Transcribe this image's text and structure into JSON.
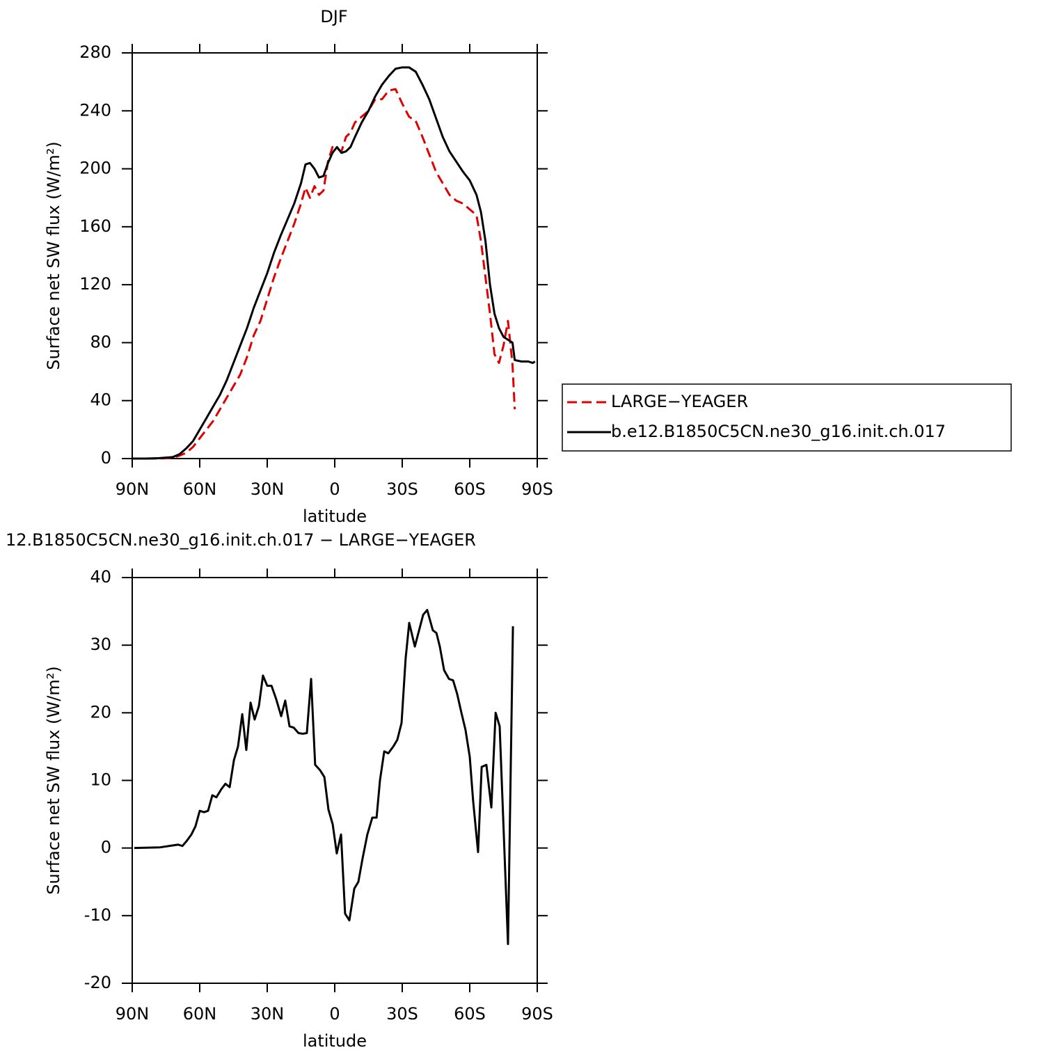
{
  "chart_data": [
    {
      "type": "line",
      "title": "DJF",
      "x_label": "latitude",
      "y_label": "Surface net SW flux (W/m²)",
      "x": [
        90,
        84,
        78,
        72,
        69,
        66,
        63,
        60,
        57,
        54,
        51,
        48,
        45,
        42,
        39,
        36,
        33,
        30,
        27,
        24,
        21,
        18,
        15,
        13,
        11,
        9,
        7,
        5,
        3,
        1,
        -1,
        -3,
        -5,
        -7,
        -9,
        -12,
        -15,
        -18,
        -21,
        -24,
        -27,
        -30,
        -33,
        -36,
        -39,
        -42,
        -45,
        -48,
        -51,
        -54,
        -57,
        -60,
        -63,
        -65,
        -67,
        -69,
        -71,
        -73,
        -75,
        -77,
        -79,
        -80,
        -83,
        -86,
        -88,
        -89
      ],
      "series": [
        {
          "name": "LARGE−YEAGER",
          "color": "#e00000",
          "style": "dashed",
          "values": [
            0,
            0,
            0,
            0.5,
            2,
            4,
            8,
            14,
            20,
            26,
            34,
            42,
            50,
            58,
            70,
            85,
            95,
            110,
            125,
            138,
            150,
            162,
            176,
            187,
            180,
            188,
            182,
            185,
            205,
            215,
            214,
            212,
            222,
            225,
            232,
            236,
            240,
            248,
            248,
            254,
            255,
            245,
            236,
            233,
            222,
            210,
            198,
            190,
            182,
            178,
            176,
            172,
            168,
            150,
            125,
            100,
            72,
            66,
            78,
            95,
            65,
            34,
            null,
            null,
            null,
            null
          ]
        },
        {
          "name": "b.e12.B1850C5CN.ne30_g16.init.ch.017",
          "color": "#000000",
          "style": "solid",
          "values": [
            0,
            0,
            0.3,
            1,
            3,
            7,
            12,
            20,
            28,
            36,
            44,
            54,
            66,
            78,
            90,
            104,
            116,
            128,
            142,
            154,
            165,
            176,
            190,
            203,
            204,
            200,
            194,
            195,
            204,
            211,
            215,
            211,
            212,
            215,
            222,
            232,
            240,
            250,
            258,
            264,
            269,
            270,
            270,
            267,
            258,
            248,
            235,
            222,
            212,
            205,
            198,
            192,
            182,
            170,
            150,
            120,
            100,
            90,
            84,
            82,
            80,
            68,
            67,
            67,
            66,
            67
          ]
        }
      ],
      "xlim": [
        90,
        -90
      ],
      "xticks": [
        {
          "value": 90,
          "label": "90N"
        },
        {
          "value": 60,
          "label": "60N"
        },
        {
          "value": 30,
          "label": "30N"
        },
        0,
        {
          "value": -30,
          "label": "30S"
        },
        {
          "value": -60,
          "label": "60S"
        },
        {
          "value": -90,
          "label": "90S"
        }
      ],
      "ylim": [
        0,
        280
      ],
      "yticks": [
        0,
        40,
        80,
        120,
        160,
        200,
        240,
        280
      ],
      "legend": "right"
    },
    {
      "type": "line",
      "title": "12.B1850C5CN.ne30_g16.init.ch.017 − LARGE−YEAGER",
      "x_label": "latitude",
      "y_label": "Surface net SW flux (W/m²)",
      "x": [
        89.1,
        77.6,
        69.6,
        67.7,
        65.9,
        63.7,
        61.9,
        60,
        58.1,
        56.3,
        54.4,
        52.6,
        50.4,
        48.6,
        46.7,
        44.8,
        43,
        41.1,
        39.3,
        37.4,
        35.6,
        33.7,
        31.9,
        30,
        28.1,
        26,
        23.8,
        22,
        20.1,
        18.2,
        16.1,
        14.2,
        12.4,
        10.5,
        8.7,
        6.5,
        4.6,
        2.8,
        0.9,
        -0.9,
        -2.8,
        -4.6,
        -6.5,
        -8.7,
        -10.5,
        -12.4,
        -14.5,
        -16.7,
        -18.6,
        -20.1,
        -22,
        -23.8,
        -26,
        -27.8,
        -29.7,
        -31.5,
        -33.1,
        -35.6,
        -39.3,
        -41.1,
        -43.6,
        -45.2,
        -46.7,
        -48.6,
        -50.8,
        -52.6,
        -54.4,
        -56.3,
        -58.1,
        -60,
        -61.5,
        -63.7,
        -65.3,
        -67.4,
        -69.6,
        -71.5,
        -73.3,
        -77,
        -79.2
      ],
      "values": [
        0,
        0.1,
        0.5,
        0.3,
        1,
        2,
        3.2,
        5.5,
        5.3,
        5.5,
        7.8,
        7.5,
        8.7,
        9.5,
        9,
        13,
        15,
        19.8,
        14.5,
        21.5,
        19,
        21,
        25.5,
        24,
        24,
        22,
        19.5,
        21.8,
        18,
        17.8,
        17,
        16.9,
        17,
        25,
        12.3,
        11.5,
        10.5,
        5.7,
        3.5,
        -0.8,
        2,
        -9.7,
        -10.7,
        -6,
        -5,
        -1.5,
        2,
        4.5,
        4.5,
        10,
        14.3,
        14,
        15,
        16,
        18.5,
        28,
        33.3,
        29.8,
        34.5,
        35.2,
        32.2,
        31.8,
        29.8,
        26.3,
        25,
        24.8,
        22.8,
        20,
        17.5,
        13.5,
        7,
        -0.6,
        12,
        12.3,
        6,
        20,
        18,
        -14.2,
        32.8
      ],
      "color": "#000000",
      "xlim": [
        90,
        -90
      ],
      "xticks": [
        {
          "value": 90,
          "label": "90N"
        },
        {
          "value": 60,
          "label": "60N"
        },
        {
          "value": 30,
          "label": "30N"
        },
        0,
        {
          "value": -30,
          "label": "30S"
        },
        {
          "value": -60,
          "label": "60S"
        },
        {
          "value": -90,
          "label": "90S"
        }
      ],
      "ylim": [
        -20,
        40
      ],
      "yticks": [
        -20,
        -10,
        0,
        10,
        20,
        30,
        40
      ]
    }
  ]
}
